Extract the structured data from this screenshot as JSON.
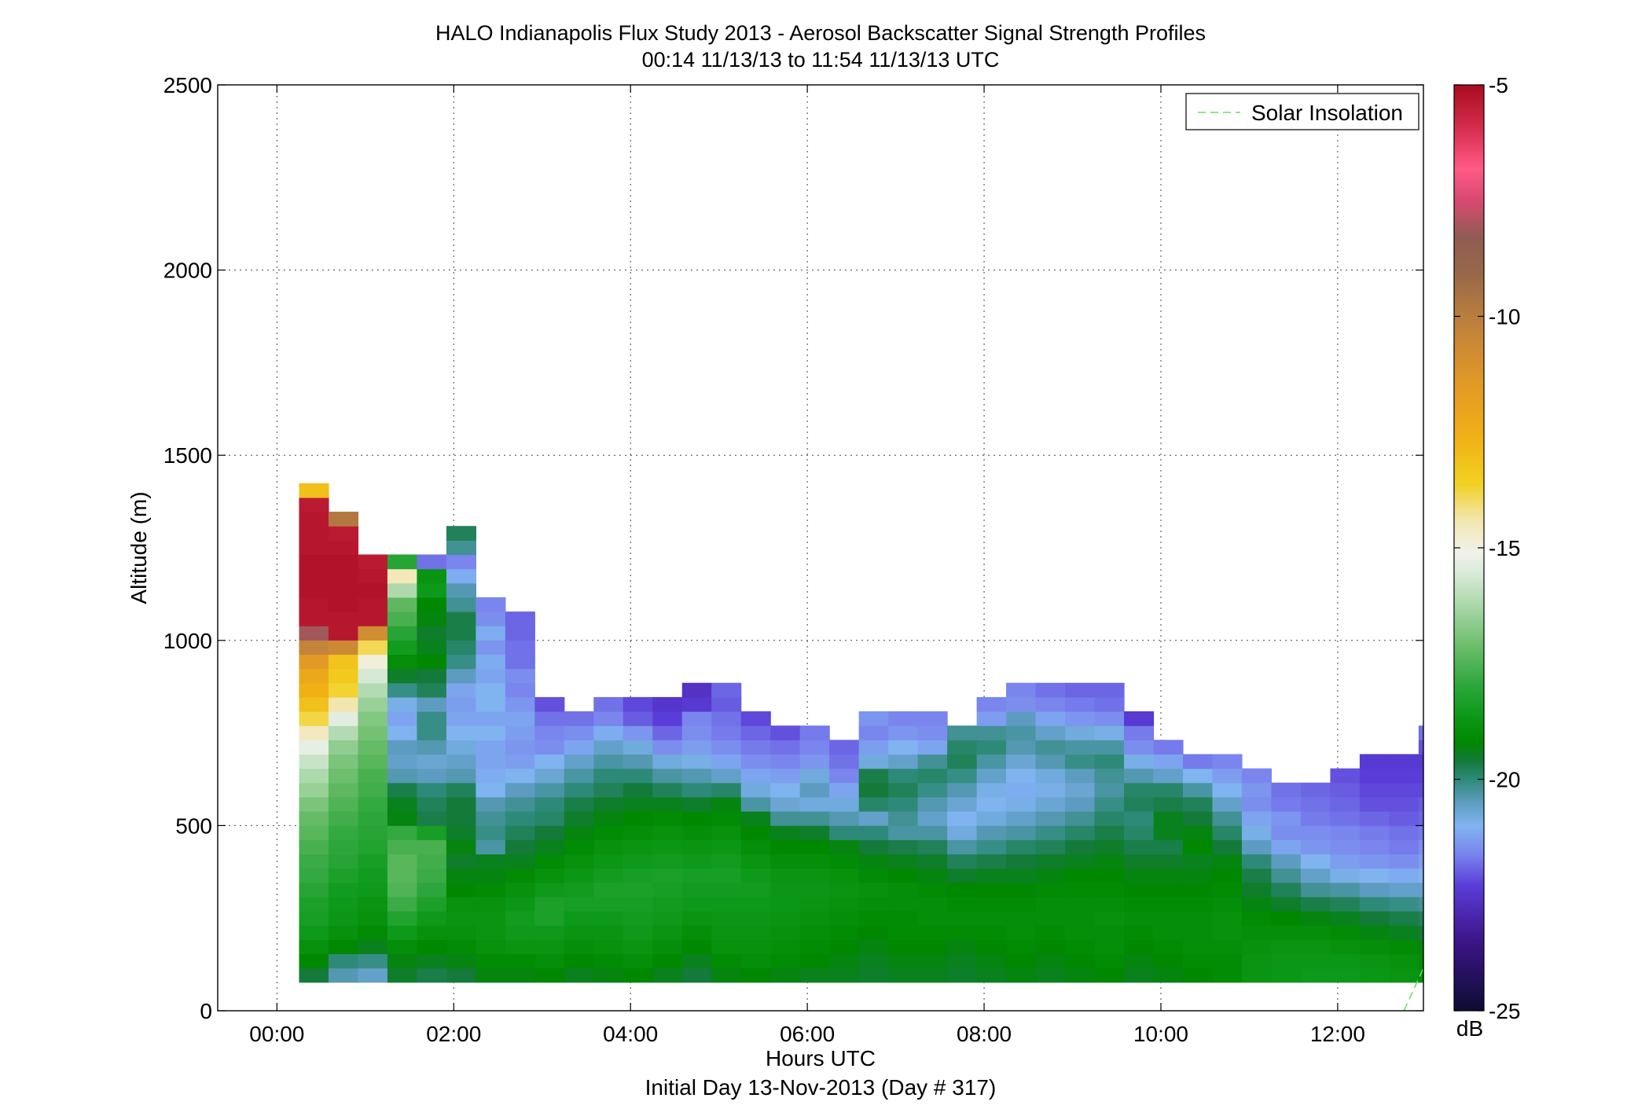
{
  "chart_data": {
    "type": "heatmap",
    "title": "HALO Indianapolis Flux Study 2013 - Aerosol Backscatter Signal Strength Profiles",
    "subtitle": "00:14 11/13/13 to 11:54 11/13/13  UTC",
    "xlabel": "Hours UTC",
    "xlabel2": "Initial Day 13-Nov-2013 (Day # 317)",
    "ylabel": "Altitude (m)",
    "xlim": [
      -0.67,
      12.97
    ],
    "ylim": [
      0,
      2500
    ],
    "x_ticks": [
      0,
      2,
      4,
      6,
      8,
      10,
      12
    ],
    "x_tick_labels": [
      "00:00",
      "02:00",
      "04:00",
      "06:00",
      "08:00",
      "10:00",
      "12:00"
    ],
    "y_ticks": [
      0,
      500,
      1000,
      1500,
      2000,
      2500
    ],
    "y_tick_labels": [
      "0",
      "500",
      "1000",
      "1500",
      "2000",
      "2500"
    ],
    "grid": true,
    "legend": {
      "entries": [
        "Solar Insolation"
      ],
      "placement": "top-right"
    },
    "colorbar": {
      "label": "dB",
      "range": [
        -25,
        -5
      ],
      "ticks": [
        -5,
        -10,
        -15,
        -20,
        -25
      ],
      "tick_labels": [
        "-5",
        "-10",
        "-15",
        "-20",
        "-25"
      ]
    },
    "cell_time_step_hours": 0.3333,
    "cell_alt_step_m": 38.5,
    "time_start_hours": 0.25,
    "alt_start_m": 77,
    "columns": [
      [
        -19.6,
        -19.2,
        -18.9,
        -18.6,
        -18.4,
        -18.3,
        -18.1,
        -17.9,
        -17.8,
        -17.6,
        -17.4,
        -17.2,
        -16.9,
        -16.5,
        -16.2,
        -15.8,
        -15.3,
        -14.6,
        -13.8,
        -13.1,
        -12.6,
        -12.2,
        -11.5,
        -10.3,
        -8.1,
        -5.3,
        -5.3,
        -5.2,
        -5.2,
        -5.2,
        -5.3,
        -5.3,
        -5.3,
        -5.4,
        -13.1
      ],
      [
        -20.4,
        -20.0,
        -19.2,
        -18.9,
        -18.7,
        -18.6,
        -18.5,
        -18.3,
        -18.1,
        -18.0,
        -17.9,
        -17.7,
        -17.5,
        -17.3,
        -17.1,
        -16.9,
        -16.6,
        -16.1,
        -15.4,
        -14.4,
        -13.7,
        -13.4,
        -13.2,
        -10.6,
        -5.3,
        -5.3,
        -5.2,
        -5.2,
        -5.2,
        -5.2,
        -5.3,
        -5.4,
        -9.8
      ],
      [
        -20.6,
        -20.1,
        -19.4,
        -19.1,
        -18.9,
        -18.8,
        -18.6,
        -18.5,
        -18.4,
        -18.2,
        -18.1,
        -18.0,
        -17.9,
        -17.7,
        -17.6,
        -17.4,
        -17.2,
        -17.0,
        -16.8,
        -16.5,
        -16.1,
        -15.6,
        -14.9,
        -13.9,
        -10.8,
        -5.3,
        -5.3,
        -5.2,
        -5.3,
        -5.4
      ],
      [
        -19.5,
        -19.3,
        -19.0,
        -18.6,
        -18.2,
        -17.8,
        -17.5,
        -17.4,
        -17.4,
        -17.6,
        -17.9,
        -19.3,
        -19.4,
        -19.7,
        -20.4,
        -20.6,
        -20.5,
        -21.0,
        -21.2,
        -20.9,
        -20.1,
        -19.5,
        -19.0,
        -18.5,
        -18.1,
        -17.6,
        -17.3,
        -16.2,
        -14.5,
        -18.1
      ],
      [
        -19.7,
        -19.4,
        -19.2,
        -18.9,
        -18.6,
        -18.3,
        -18.0,
        -17.8,
        -17.7,
        -17.6,
        -18.4,
        -19.7,
        -19.8,
        -20.0,
        -20.5,
        -20.7,
        -20.4,
        -20.1,
        -20.1,
        -20.5,
        -19.8,
        -19.6,
        -19.2,
        -19.4,
        -19.5,
        -19.3,
        -19.2,
        -18.6,
        -18.8,
        -21.8
      ],
      [
        -19.6,
        -19.3,
        -19.1,
        -18.9,
        -18.8,
        -18.9,
        -19.2,
        -19.3,
        -19.5,
        -19.3,
        -19.5,
        -19.6,
        -19.6,
        -19.8,
        -20.4,
        -20.6,
        -20.8,
        -21.0,
        -21.2,
        -21.3,
        -21.2,
        -20.5,
        -20.1,
        -19.9,
        -19.7,
        -19.7,
        -20.2,
        -20.4,
        -21.1,
        -21.6,
        -20.2,
        -19.8
      ],
      [
        -19.3,
        -19.1,
        -18.9,
        -18.8,
        -18.8,
        -18.9,
        -19.1,
        -19.3,
        -19.4,
        -20.3,
        -20.1,
        -20.2,
        -20.4,
        -21.0,
        -21.1,
        -21.2,
        -21.2,
        -21.0,
        -21.2,
        -21.0,
        -21.0,
        -21.2,
        -21.1,
        -21.4,
        -21.1,
        -21.5,
        -21.6
      ],
      [
        -19.3,
        -19.1,
        -18.8,
        -18.6,
        -18.5,
        -18.7,
        -18.9,
        -19.1,
        -19.4,
        -19.6,
        -19.8,
        -20.0,
        -20.2,
        -20.5,
        -21.0,
        -21.3,
        -21.4,
        -21.3,
        -21.2,
        -21.4,
        -21.6,
        -21.5,
        -21.8,
        -21.8,
        -21.9,
        -21.9
      ],
      [
        -19.2,
        -19.0,
        -18.8,
        -18.6,
        -18.3,
        -18.3,
        -18.6,
        -18.9,
        -19.1,
        -19.4,
        -19.6,
        -19.9,
        -20.0,
        -20.3,
        -20.7,
        -21.0,
        -21.5,
        -21.6,
        -21.8,
        -22.1
      ],
      [
        -19.4,
        -19.2,
        -19.0,
        -18.8,
        -18.6,
        -18.4,
        -18.5,
        -18.7,
        -18.9,
        -19.1,
        -19.3,
        -19.5,
        -19.7,
        -20.0,
        -20.3,
        -20.6,
        -21.2,
        -21.5,
        -21.8
      ],
      [
        -19.3,
        -19.1,
        -18.9,
        -18.8,
        -18.6,
        -18.4,
        -18.3,
        -18.5,
        -18.7,
        -18.9,
        -19.1,
        -19.3,
        -19.5,
        -19.8,
        -20.0,
        -20.3,
        -20.6,
        -21.1,
        -21.6,
        -21.8
      ],
      [
        -19.2,
        -19.0,
        -18.8,
        -18.6,
        -18.5,
        -18.4,
        -18.3,
        -18.4,
        -18.6,
        -18.8,
        -19.0,
        -19.2,
        -19.4,
        -19.6,
        -20.0,
        -20.4,
        -20.8,
        -21.4,
        -22.0,
        -22.2
      ],
      [
        -19.4,
        -19.2,
        -19.0,
        -18.8,
        -18.6,
        -18.5,
        -18.4,
        -18.3,
        -18.5,
        -18.7,
        -18.9,
        -19.1,
        -19.4,
        -19.8,
        -20.3,
        -20.8,
        -21.5,
        -21.9,
        -22.3,
        -22.5
      ],
      [
        -19.6,
        -19.4,
        -19.2,
        -19.0,
        -18.8,
        -18.6,
        -18.5,
        -18.4,
        -18.6,
        -18.8,
        -19.0,
        -19.2,
        -19.5,
        -20.0,
        -20.4,
        -20.9,
        -21.3,
        -21.5,
        -21.6,
        -22.4,
        -22.6
      ],
      [
        -19.3,
        -19.1,
        -18.9,
        -18.8,
        -18.7,
        -18.6,
        -18.5,
        -18.4,
        -18.5,
        -18.7,
        -18.9,
        -19.1,
        -19.3,
        -19.9,
        -20.6,
        -21.2,
        -21.5,
        -21.7,
        -21.8,
        -22.0,
        -21.9
      ],
      [
        -19.2,
        -19.0,
        -18.9,
        -18.8,
        -18.7,
        -18.6,
        -18.5,
        -18.6,
        -18.8,
        -19.0,
        -19.2,
        -19.4,
        -20.3,
        -20.8,
        -21.2,
        -21.5,
        -21.7,
        -21.9,
        -22.2
      ],
      [
        -19.3,
        -19.1,
        -19.0,
        -18.9,
        -18.8,
        -18.7,
        -18.7,
        -18.8,
        -19.0,
        -19.2,
        -19.4,
        -20.2,
        -20.7,
        -21.0,
        -21.3,
        -21.6,
        -21.8,
        -22.1
      ],
      [
        -19.4,
        -19.2,
        -19.1,
        -19.0,
        -18.9,
        -18.8,
        -18.7,
        -18.8,
        -19.0,
        -19.2,
        -19.5,
        -20.2,
        -20.8,
        -20.5,
        -20.8,
        -21.4,
        -21.6,
        -21.7
      ],
      [
        -19.4,
        -19.3,
        -19.2,
        -19.1,
        -19.0,
        -18.9,
        -18.8,
        -18.9,
        -19.1,
        -19.3,
        -20.0,
        -20.4,
        -20.8,
        -21.2,
        -21.6,
        -21.8,
        -21.9
      ],
      [
        -19.5,
        -19.4,
        -19.3,
        -19.2,
        -19.1,
        -19.0,
        -18.9,
        -19.1,
        -19.3,
        -19.6,
        -20.0,
        -20.6,
        -19.9,
        -19.6,
        -19.7,
        -20.8,
        -21.3,
        -21.6,
        -21.4
      ],
      [
        -19.4,
        -19.3,
        -19.2,
        -19.1,
        -19.1,
        -19.0,
        -19.0,
        -19.2,
        -19.4,
        -19.7,
        -20.3,
        -20.2,
        -20.0,
        -19.8,
        -20.0,
        -20.6,
        -21.0,
        -21.4,
        -21.6
      ],
      [
        -19.4,
        -19.3,
        -19.2,
        -19.1,
        -19.0,
        -19.0,
        -19.1,
        -19.3,
        -19.5,
        -19.8,
        -20.3,
        -20.6,
        -20.4,
        -20.1,
        -19.9,
        -20.2,
        -21.2,
        -21.5,
        -21.6
      ],
      [
        -19.5,
        -19.4,
        -19.3,
        -19.1,
        -19.0,
        -19.1,
        -19.2,
        -19.5,
        -19.8,
        -20.3,
        -20.8,
        -21.0,
        -20.7,
        -20.4,
        -20.1,
        -19.8,
        -19.9,
        -20.2
      ],
      [
        -19.4,
        -19.3,
        -19.2,
        -19.1,
        -19.0,
        -19.1,
        -19.2,
        -19.4,
        -19.7,
        -20.1,
        -20.4,
        -20.8,
        -21.0,
        -20.9,
        -20.6,
        -20.3,
        -20.0,
        -20.2,
        -21.3,
        -21.6
      ],
      [
        -19.3,
        -19.2,
        -19.1,
        -19.0,
        -19.0,
        -19.1,
        -19.2,
        -19.4,
        -19.6,
        -19.9,
        -20.3,
        -20.6,
        -20.9,
        -21.1,
        -21.0,
        -20.7,
        -20.4,
        -20.3,
        -20.5,
        -21.5,
        -21.6
      ],
      [
        -19.4,
        -19.3,
        -19.2,
        -19.1,
        -19.0,
        -19.0,
        -19.1,
        -19.3,
        -19.5,
        -19.8,
        -20.1,
        -20.4,
        -20.7,
        -20.9,
        -20.8,
        -20.4,
        -20.2,
        -20.6,
        -21.2,
        -21.6,
        -21.8
      ],
      [
        -19.3,
        -19.2,
        -19.1,
        -19.0,
        -19.0,
        -19.0,
        -19.1,
        -19.2,
        -19.4,
        -19.6,
        -19.9,
        -20.2,
        -20.5,
        -20.7,
        -20.5,
        -20.1,
        -20.3,
        -20.8,
        -21.4,
        -21.7,
        -21.9
      ],
      [
        -19.2,
        -19.1,
        -19.0,
        -19.0,
        -18.9,
        -19.0,
        -19.1,
        -19.2,
        -19.3,
        -19.5,
        -19.7,
        -19.9,
        -20.1,
        -20.3,
        -20.2,
        -20.0,
        -20.3,
        -20.9,
        -21.5,
        -21.8,
        -21.9
      ],
      [
        -19.4,
        -19.3,
        -19.2,
        -19.1,
        -19.0,
        -19.1,
        -19.2,
        -19.3,
        -19.5,
        -19.7,
        -19.9,
        -20.0,
        -19.8,
        -19.9,
        -20.4,
        -20.9,
        -21.5,
        -21.7,
        -22.4
      ],
      [
        -19.3,
        -19.2,
        -19.1,
        -19.0,
        -19.0,
        -19.1,
        -19.2,
        -19.3,
        -19.5,
        -19.7,
        -19.4,
        -19.4,
        -19.7,
        -19.9,
        -20.6,
        -21.2,
        -21.7
      ],
      [
        -19.2,
        -19.1,
        -19.0,
        -19.0,
        -19.0,
        -19.1,
        -19.2,
        -19.3,
        -19.4,
        -19.2,
        -19.3,
        -19.6,
        -19.8,
        -20.3,
        -21.0,
        -21.7
      ],
      [
        -19.1,
        -19.1,
        -19.0,
        -18.9,
        -18.9,
        -19.0,
        -19.1,
        -19.2,
        -19.3,
        -19.6,
        -19.9,
        -20.2,
        -20.6,
        -21.0,
        -21.3,
        -21.6
      ],
      [
        -18.8,
        -18.8,
        -18.9,
        -19.0,
        -19.1,
        -19.3,
        -19.5,
        -19.7,
        -20.0,
        -20.5,
        -20.9,
        -21.2,
        -21.5,
        -21.4,
        -21.6
      ],
      [
        -18.7,
        -18.7,
        -18.8,
        -19.0,
        -19.2,
        -19.5,
        -19.8,
        -20.2,
        -20.5,
        -21.2,
        -21.5,
        -21.4,
        -21.7,
        -21.8
      ],
      [
        -18.6,
        -18.7,
        -18.8,
        -19.0,
        -19.3,
        -19.7,
        -20.2,
        -20.6,
        -21.0,
        -21.4,
        -21.5,
        -21.7,
        -21.8,
        -21.9
      ],
      [
        -18.6,
        -18.7,
        -18.9,
        -19.1,
        -19.4,
        -19.8,
        -20.3,
        -20.9,
        -21.3,
        -21.5,
        -21.6,
        -21.8,
        -21.9,
        -22.0,
        -22.1
      ],
      [
        -18.7,
        -18.8,
        -19.0,
        -19.3,
        -19.6,
        -20.0,
        -20.5,
        -21.0,
        -21.4,
        -21.6,
        -21.7,
        -21.9,
        -22.1,
        -22.2,
        -22.3,
        -22.4
      ],
      [
        -18.8,
        -18.9,
        -19.1,
        -19.4,
        -19.7,
        -20.1,
        -20.6,
        -21.1,
        -21.5,
        -21.7,
        -21.8,
        -22.0,
        -22.1,
        -22.2,
        -22.3,
        -22.4
      ],
      [
        -19.0,
        -19.1,
        -19.3,
        -19.6,
        -19.8,
        -20.2,
        -20.6,
        -21.0,
        -21.3,
        -21.5,
        -21.7,
        -21.9,
        -22.0,
        -22.2,
        -22.3,
        -22.4,
        -22.1,
        -21.8
      ]
    ]
  }
}
